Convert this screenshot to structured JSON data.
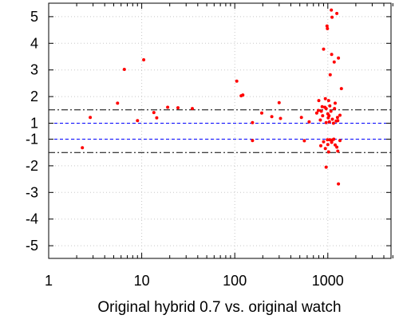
{
  "chart_data": {
    "type": "scatter",
    "title": "",
    "xlabel": "Original hybrid 0.7 vs. original watch",
    "ylabel": "",
    "xscale": "log",
    "xlim": [
      1,
      5000
    ],
    "x_ticks": [
      {
        "value": 1,
        "label": "1"
      },
      {
        "value": 10,
        "label": "10"
      },
      {
        "value": 100,
        "label": "100"
      },
      {
        "value": 1000,
        "label": "1000"
      }
    ],
    "y_axis": "broken: 1 and -1 are adjacent; interval (-1, 1) is omitted",
    "ylim": [
      -5.5,
      5.5
    ],
    "y_ticks": [
      {
        "value": 5,
        "label": "5"
      },
      {
        "value": 4,
        "label": "4"
      },
      {
        "value": 3,
        "label": "3"
      },
      {
        "value": 2,
        "label": "2"
      },
      {
        "value": 1,
        "label": "1"
      },
      {
        "value": -1,
        "label": "-1"
      },
      {
        "value": -2,
        "label": "-2"
      },
      {
        "value": -3,
        "label": "-3"
      },
      {
        "value": -4,
        "label": "-4"
      },
      {
        "value": -5,
        "label": "-5"
      }
    ],
    "grid": "dotted, at major ticks",
    "legend": "none",
    "reference_lines": [
      {
        "y": 1.5,
        "style": "dash-dot",
        "color": "#000000"
      },
      {
        "y": 1.0,
        "style": "dashed",
        "color": "#0000ff"
      },
      {
        "y": -1.0,
        "style": "dashed",
        "color": "#0000ff"
      },
      {
        "y": -1.5,
        "style": "dash-dot",
        "color": "#000000"
      }
    ],
    "series": [
      {
        "color": "#ff0000",
        "points": [
          [
            2.8,
            1.22
          ],
          [
            5.5,
            1.75
          ],
          [
            6.5,
            3.02
          ],
          [
            9,
            1.1
          ],
          [
            10.5,
            3.38
          ],
          [
            13.5,
            1.4
          ],
          [
            14.5,
            1.2
          ],
          [
            19,
            1.6
          ],
          [
            24.5,
            1.58
          ],
          [
            35,
            1.55
          ],
          [
            105,
            2.58
          ],
          [
            117,
            2.03
          ],
          [
            122,
            2.06
          ],
          [
            155,
            1.02
          ],
          [
            195,
            1.38
          ],
          [
            250,
            1.25
          ],
          [
            300,
            1.77
          ],
          [
            310,
            1.18
          ],
          [
            520,
            1.22
          ],
          [
            630,
            1.05
          ],
          [
            760,
            1.38
          ],
          [
            790,
            1.48
          ],
          [
            800,
            1.85
          ],
          [
            850,
            1.45
          ],
          [
            880,
            1.28
          ],
          [
            900,
            3.78
          ],
          [
            930,
            1.6
          ],
          [
            940,
            1.92
          ],
          [
            960,
            1.55
          ],
          [
            980,
            4.65
          ],
          [
            990,
            4.55
          ],
          [
            1000,
            1.35
          ],
          [
            1010,
            1.2
          ],
          [
            1020,
            1.85
          ],
          [
            1040,
            1.05
          ],
          [
            1050,
            1.65
          ],
          [
            1060,
            2.82
          ],
          [
            1080,
            1.45
          ],
          [
            1090,
            5.25
          ],
          [
            1100,
            3.58
          ],
          [
            1110,
            4.98
          ],
          [
            1120,
            1.15
          ],
          [
            1150,
            1.0
          ],
          [
            1170,
            3.3
          ],
          [
            1200,
            1.75
          ],
          [
            1230,
            1.08
          ],
          [
            1250,
            5.12
          ],
          [
            1270,
            1.22
          ],
          [
            1300,
            3.45
          ],
          [
            1350,
            1.3
          ],
          [
            1400,
            2.3
          ],
          [
            830,
            1.12
          ],
          [
            870,
            1.62
          ],
          [
            960,
            1.02
          ],
          [
            1030,
            1.28
          ],
          [
            1180,
            1.55
          ],
          [
            1280,
            1.1
          ],
          [
            2.3,
            -1.32
          ],
          [
            155,
            -1.05
          ],
          [
            560,
            -1.06
          ],
          [
            840,
            -1.25
          ],
          [
            900,
            -1.1
          ],
          [
            940,
            -1.35
          ],
          [
            960,
            -2.05
          ],
          [
            990,
            -1.02
          ],
          [
            1000,
            -1.2
          ],
          [
            1020,
            -1.48
          ],
          [
            1050,
            -1.02
          ],
          [
            1100,
            -1.12
          ],
          [
            1120,
            -1.03
          ],
          [
            1160,
            -1.0
          ],
          [
            1200,
            -1.22
          ],
          [
            1250,
            -1.3
          ],
          [
            1280,
            -1.45
          ],
          [
            1300,
            -2.68
          ],
          [
            1350,
            -1.05
          ]
        ]
      }
    ]
  }
}
